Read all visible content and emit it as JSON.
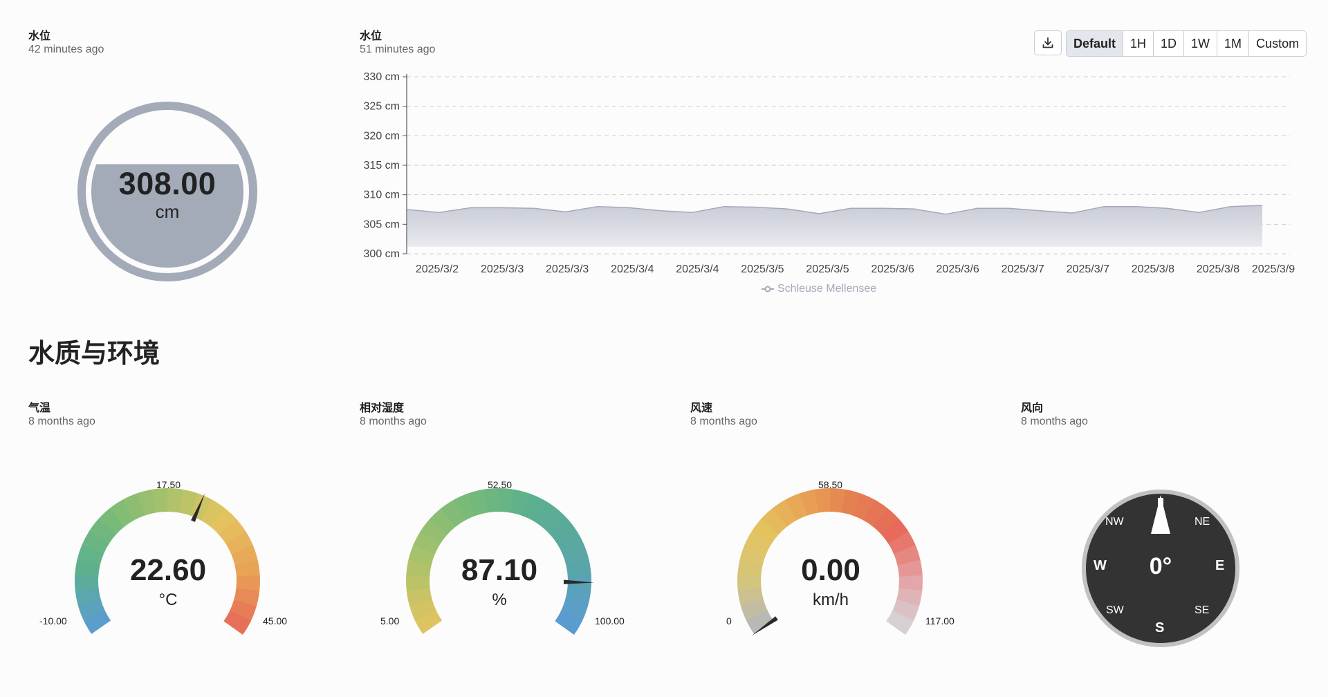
{
  "level_card": {
    "title": "水位",
    "updated": "42 minutes ago",
    "value": "308.00",
    "unit": "cm",
    "fill_fraction": 0.68
  },
  "chart_card": {
    "title": "水位",
    "updated": "51 minutes ago"
  },
  "toolbar": {
    "download_icon": "download-icon",
    "ranges": [
      "Default",
      "1H",
      "1D",
      "1W",
      "1M",
      "Custom"
    ],
    "active_range": "Default"
  },
  "chart_data": {
    "type": "area",
    "title": "",
    "xlabel": "",
    "ylabel": "",
    "ylim": [
      300,
      330
    ],
    "y_ticks": [
      "330 cm",
      "325 cm",
      "320 cm",
      "315 cm",
      "310 cm",
      "305 cm",
      "300 cm"
    ],
    "y_tick_values": [
      330,
      325,
      320,
      315,
      310,
      305,
      300
    ],
    "x_tick_labels": [
      "2025/3/2",
      "2025/3/3",
      "2025/3/3",
      "2025/3/4",
      "2025/3/4",
      "2025/3/5",
      "2025/3/5",
      "2025/3/6",
      "2025/3/6",
      "2025/3/7",
      "2025/3/7",
      "2025/3/8",
      "2025/3/8",
      "2025/3/9"
    ],
    "grid": true,
    "legend_position": "bottom",
    "series": [
      {
        "name": "Schleuse Mellensee",
        "color": "#a3a9b8",
        "values": [
          307.5,
          307.0,
          307.8,
          307.8,
          307.7,
          307.1,
          308.0,
          307.8,
          307.3,
          307.0,
          308.0,
          307.9,
          307.6,
          306.8,
          307.7,
          307.7,
          307.6,
          306.7,
          307.7,
          307.7,
          307.3,
          306.9,
          308.0,
          308.0,
          307.7,
          307.0,
          308.0,
          308.2
        ]
      }
    ]
  },
  "section": {
    "title": "水质与环境"
  },
  "gauges": [
    {
      "title": "气温",
      "updated": "8 months ago",
      "value": "22.60",
      "unit": "°C",
      "min_label": "-10.00",
      "mid_label": "17.50",
      "max_label": "45.00",
      "min": -10,
      "max": 45,
      "reading": 22.6,
      "palette": [
        "#5b9bd5",
        "#5bb08f",
        "#79ba77",
        "#a9c26b",
        "#e4c45f",
        "#e8a255",
        "#e76a5a"
      ]
    },
    {
      "title": "相对湿度",
      "updated": "8 months ago",
      "value": "87.10",
      "unit": "%",
      "min_label": "5.00",
      "mid_label": "52.50",
      "max_label": "100.00",
      "min": 5,
      "max": 100,
      "reading": 87.1,
      "palette": [
        "#e4c45f",
        "#a9c26b",
        "#79ba77",
        "#5bb08f",
        "#5aa6a6",
        "#5b9bd5"
      ]
    },
    {
      "title": "风速",
      "updated": "8 months ago",
      "value": "0.00",
      "unit": "km/h",
      "min_label": "0",
      "mid_label": "58.50",
      "max_label": "117.00",
      "min": 0,
      "max": 117,
      "reading": 0,
      "palette": [
        "#b3b6bd",
        "#d5c57a",
        "#e4c45f",
        "#e8a255",
        "#e47e50",
        "#e76a5a",
        "#e4a3a6",
        "#d5d6d9"
      ]
    }
  ],
  "compass": {
    "title": "风向",
    "updated": "8 months ago",
    "value": "0°",
    "reading_deg": 0,
    "dirs": {
      "n_marker": "north-pointer-icon",
      "ne": "NE",
      "nw": "NW",
      "e": "E",
      "w": "W",
      "se": "SE",
      "sw": "SW",
      "s": "S"
    }
  }
}
